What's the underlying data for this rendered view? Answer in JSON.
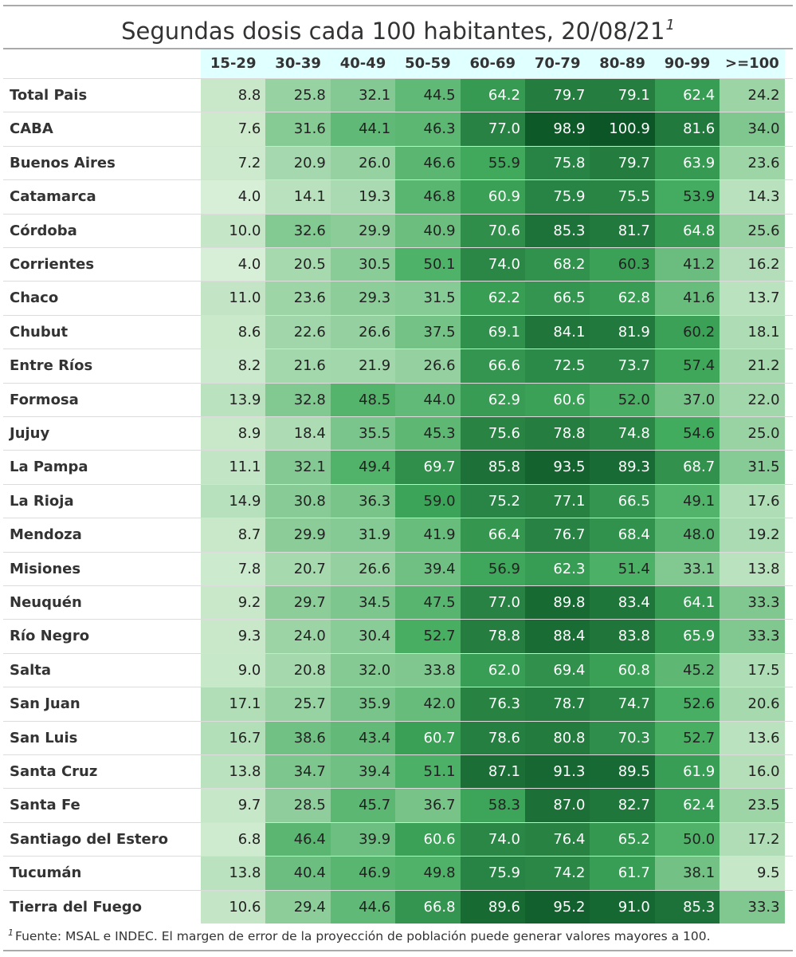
{
  "title": "Segundas dosis cada 100 habitantes, 20/08/21",
  "title_note": "1",
  "footnote_mark": "1",
  "footnote": "Fuente: MSAL e INDEC. El margen de error de la proyección de población puede generar valores mayores a 100.",
  "chart_data": {
    "type": "heatmap",
    "title": "Segundas dosis cada 100 habitantes, 20/08/21",
    "columns": [
      "15-29",
      "30-39",
      "40-49",
      "50-59",
      "60-69",
      "70-79",
      "80-89",
      "90-99",
      ">=100"
    ],
    "rows": [
      {
        "name": "Total Pais",
        "values": [
          8.8,
          25.8,
          32.1,
          44.5,
          64.2,
          79.7,
          79.1,
          62.4,
          24.2
        ]
      },
      {
        "name": "CABA",
        "values": [
          7.6,
          31.6,
          44.1,
          46.3,
          77.0,
          98.9,
          100.9,
          81.6,
          34.0
        ]
      },
      {
        "name": "Buenos Aires",
        "values": [
          7.2,
          20.9,
          26.0,
          46.6,
          55.9,
          75.8,
          79.7,
          63.9,
          23.6
        ]
      },
      {
        "name": "Catamarca",
        "values": [
          4.0,
          14.1,
          19.3,
          46.8,
          60.9,
          75.9,
          75.5,
          53.9,
          14.3
        ]
      },
      {
        "name": "Córdoba",
        "values": [
          10.0,
          32.6,
          29.9,
          40.9,
          70.6,
          85.3,
          81.7,
          64.8,
          25.6
        ]
      },
      {
        "name": "Corrientes",
        "values": [
          4.0,
          20.5,
          30.5,
          50.1,
          74.0,
          68.2,
          60.3,
          41.2,
          16.2
        ]
      },
      {
        "name": "Chaco",
        "values": [
          11.0,
          23.6,
          29.3,
          31.5,
          62.2,
          66.5,
          62.8,
          41.6,
          13.7
        ]
      },
      {
        "name": "Chubut",
        "values": [
          8.6,
          22.6,
          26.6,
          37.5,
          69.1,
          84.1,
          81.9,
          60.2,
          18.1
        ]
      },
      {
        "name": "Entre Ríos",
        "values": [
          8.2,
          21.6,
          21.9,
          26.6,
          66.6,
          72.5,
          73.7,
          57.4,
          21.2
        ]
      },
      {
        "name": "Formosa",
        "values": [
          13.9,
          32.8,
          48.5,
          44.0,
          62.9,
          60.6,
          52.0,
          37.0,
          22.0
        ]
      },
      {
        "name": "Jujuy",
        "values": [
          8.9,
          18.4,
          35.5,
          45.3,
          75.6,
          78.8,
          74.8,
          54.6,
          25.0
        ]
      },
      {
        "name": "La Pampa",
        "values": [
          11.1,
          32.1,
          49.4,
          69.7,
          85.8,
          93.5,
          89.3,
          68.7,
          31.5
        ]
      },
      {
        "name": "La Rioja",
        "values": [
          14.9,
          30.8,
          36.3,
          59.0,
          75.2,
          77.1,
          66.5,
          49.1,
          17.6
        ]
      },
      {
        "name": "Mendoza",
        "values": [
          8.7,
          29.9,
          31.9,
          41.9,
          66.4,
          76.7,
          68.4,
          48.0,
          19.2
        ]
      },
      {
        "name": "Misiones",
        "values": [
          7.8,
          20.7,
          26.6,
          39.4,
          56.9,
          62.3,
          51.4,
          33.1,
          13.8
        ]
      },
      {
        "name": "Neuquén",
        "values": [
          9.2,
          29.7,
          34.5,
          47.5,
          77.0,
          89.8,
          83.4,
          64.1,
          33.3
        ]
      },
      {
        "name": "Río Negro",
        "values": [
          9.3,
          24.0,
          30.4,
          52.7,
          78.8,
          88.4,
          83.8,
          65.9,
          33.3
        ]
      },
      {
        "name": "Salta",
        "values": [
          9.0,
          20.8,
          32.0,
          33.8,
          62.0,
          69.4,
          60.8,
          45.2,
          17.5
        ]
      },
      {
        "name": "San Juan",
        "values": [
          17.1,
          25.7,
          35.9,
          42.0,
          76.3,
          78.7,
          74.7,
          52.6,
          20.6
        ]
      },
      {
        "name": "San Luis",
        "values": [
          16.7,
          38.6,
          43.4,
          60.7,
          78.6,
          80.8,
          70.3,
          52.7,
          13.6
        ]
      },
      {
        "name": "Santa Cruz",
        "values": [
          13.8,
          34.7,
          39.4,
          51.1,
          87.1,
          91.3,
          89.5,
          61.9,
          16.0
        ]
      },
      {
        "name": "Santa Fe",
        "values": [
          9.7,
          28.5,
          45.7,
          36.7,
          58.3,
          87.0,
          82.7,
          62.4,
          23.5
        ]
      },
      {
        "name": "Santiago del Estero",
        "values": [
          6.8,
          46.4,
          39.9,
          60.6,
          74.0,
          76.4,
          65.2,
          50.0,
          17.2
        ]
      },
      {
        "name": "Tucumán",
        "values": [
          13.8,
          40.4,
          46.9,
          49.8,
          75.9,
          74.2,
          61.7,
          38.1,
          9.5
        ]
      },
      {
        "name": "Tierra del Fuego",
        "values": [
          10.6,
          29.4,
          44.6,
          66.8,
          89.6,
          95.2,
          91.0,
          85.3,
          33.3
        ]
      }
    ],
    "color_scale": {
      "low": "#e3f4df",
      "mid": "#41ab5d",
      "high": "#00441b"
    }
  }
}
